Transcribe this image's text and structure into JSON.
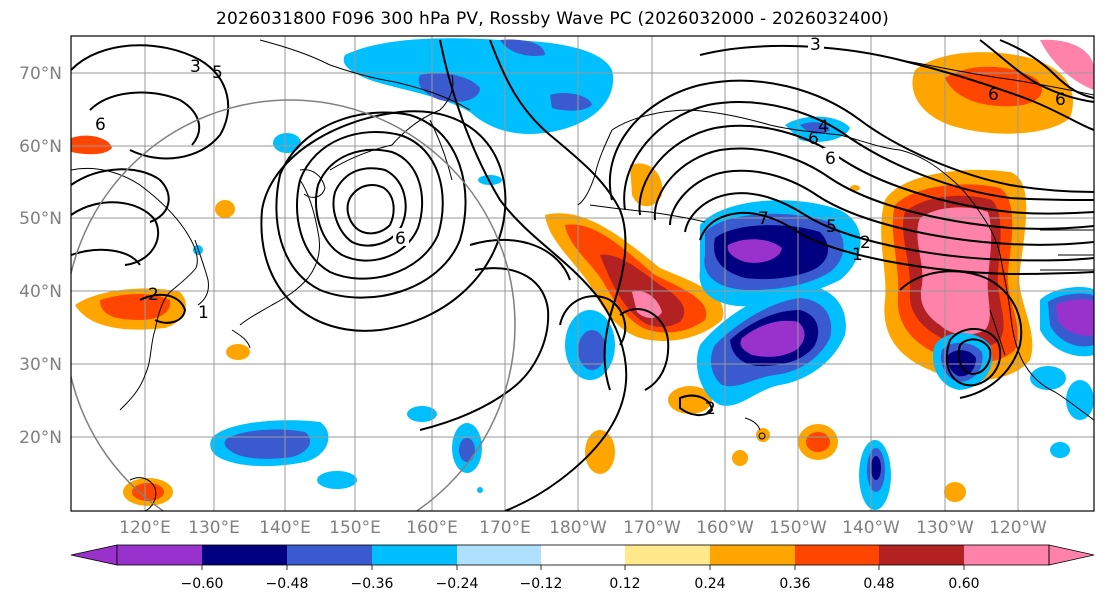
{
  "title": "2026031800 F096 300 hPa PV, Rossby Wave PC (2026032000 - 2026032400)",
  "colors": {
    "neg_060": "#9932CC",
    "neg_048": "#000080",
    "neg_036": "#3A5BD0",
    "neg_024": "#00BFFF",
    "neg_012": "#B0E0FF",
    "neutral": "#FFFFFF",
    "pos_012": "#FFE98A",
    "pos_024": "#FFA500",
    "pos_036": "#FF4500",
    "pos_048": "#B22222",
    "pos_060": "#FF82AB",
    "grid": "#999999",
    "coast": "#000000",
    "contour": "#000000",
    "circle": "#808080"
  },
  "map": {
    "lat_labels": [
      "70°N",
      "60°N",
      "50°N",
      "40°N",
      "30°N",
      "20°N"
    ],
    "lon_labels": [
      "120°E",
      "130°E",
      "140°E",
      "150°E",
      "160°E",
      "170°E",
      "180°W",
      "170°W",
      "160°W",
      "150°W",
      "140°W",
      "130°W",
      "120°W"
    ],
    "contour_labels": [
      "3",
      "6",
      "6",
      "6",
      "4",
      "6",
      "7",
      "5",
      "2",
      "1",
      "1",
      "2",
      "3",
      "5",
      "6",
      "6",
      "2"
    ]
  },
  "colorbar": {
    "labels": [
      "−0.60",
      "−0.48",
      "−0.36",
      "−0.24",
      "−0.12",
      "0.12",
      "0.24",
      "0.36",
      "0.48",
      "0.60"
    ],
    "colors": [
      "#9932CC",
      "#000080",
      "#3A5BD0",
      "#00BFFF",
      "#B0E0FF",
      "#FFFFFF",
      "#FFE98A",
      "#FFA500",
      "#FF4500",
      "#B22222",
      "#FF82AB"
    ]
  }
}
